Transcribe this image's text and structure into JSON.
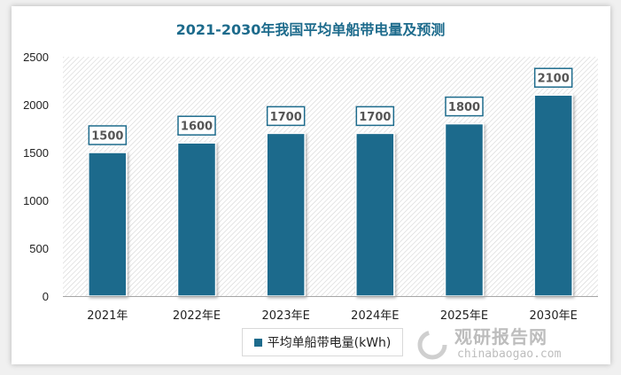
{
  "chart_data": {
    "type": "bar",
    "title": "2021-2030年我国平均单船带电量及预测",
    "categories": [
      "2021年",
      "2022年E",
      "2023年E",
      "2024年E",
      "2025年E",
      "2030年E"
    ],
    "series": [
      {
        "name": "平均单船带电量(kWh)",
        "values": [
          1500,
          1600,
          1700,
          1700,
          1800,
          2100
        ]
      }
    ],
    "data_labels": [
      "1500",
      "1600",
      "1700",
      "1700",
      "1800",
      "2100"
    ],
    "yticks": [
      "0",
      "500",
      "1000",
      "1500",
      "2000",
      "2500"
    ],
    "ylim": [
      0,
      2500
    ],
    "xlabel": "",
    "ylabel": "",
    "grid": false,
    "legend": "bottom",
    "colors": {
      "bar": "#1d6b8c",
      "title": "#1d6b8c"
    }
  },
  "watermark": {
    "cn": "观研报告网",
    "en": "chinabaogao.com"
  }
}
